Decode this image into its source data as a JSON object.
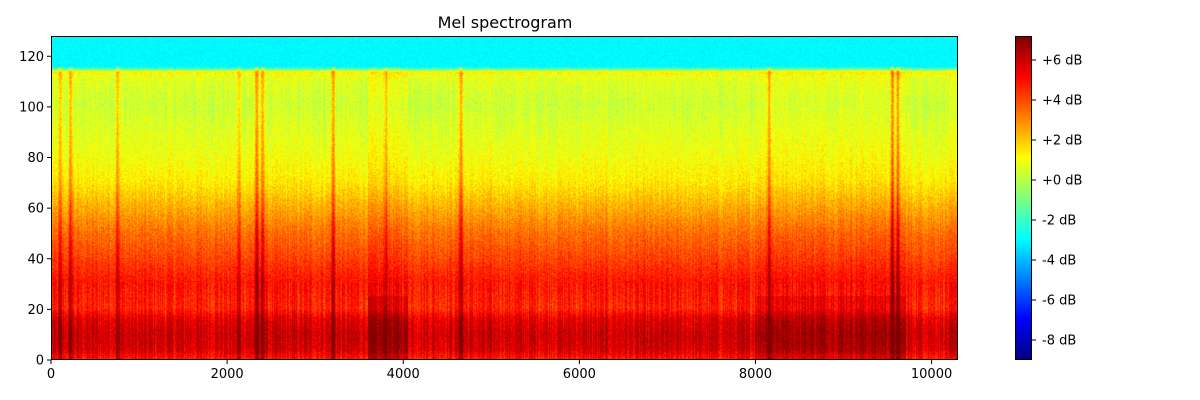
{
  "chart_data": {
    "type": "heatmap",
    "title": "Mel spectrogram",
    "xlabel": "",
    "ylabel": "",
    "xlim": [
      0,
      10300
    ],
    "ylim": [
      0,
      128
    ],
    "x_ticks": [
      0,
      2000,
      4000,
      6000,
      8000,
      10000
    ],
    "y_ticks": [
      0,
      20,
      40,
      60,
      80,
      100,
      120
    ],
    "n_time_frames": 10300,
    "n_mel_bins": 128,
    "colormap": "jet",
    "colorbar": {
      "range": [
        -9,
        7.2
      ],
      "unit": "dB",
      "ticks": [
        -8,
        -6,
        -4,
        -2,
        0,
        2,
        4,
        6
      ],
      "tick_labels": [
        "-8 dB",
        "-6 dB",
        "-4 dB",
        "-2 dB",
        "+0 dB",
        "+2 dB",
        "+4 dB",
        "+6 dB"
      ]
    },
    "band_profile_db": [
      {
        "mel_bin": 0,
        "db": 4.8
      },
      {
        "mel_bin": 4,
        "db": 5.8
      },
      {
        "mel_bin": 10,
        "db": 6.0
      },
      {
        "mel_bin": 16,
        "db": 5.6
      },
      {
        "mel_bin": 20,
        "db": 4.6
      },
      {
        "mel_bin": 30,
        "db": 4.9
      },
      {
        "mel_bin": 40,
        "db": 4.1
      },
      {
        "mel_bin": 50,
        "db": 3.4
      },
      {
        "mel_bin": 60,
        "db": 2.4
      },
      {
        "mel_bin": 70,
        "db": 1.4
      },
      {
        "mel_bin": 80,
        "db": 0.9
      },
      {
        "mel_bin": 90,
        "db": 0.6
      },
      {
        "mel_bin": 100,
        "db": 0.3
      },
      {
        "mel_bin": 110,
        "db": 0.6
      },
      {
        "mel_bin": 113,
        "db": 1.2
      },
      {
        "mel_bin": 115,
        "db": -3.0
      },
      {
        "mel_bin": 127,
        "db": -3.0
      }
    ],
    "vertical_streaks": [
      {
        "frame": 100,
        "db_boost": 1.4
      },
      {
        "frame": 220,
        "db_boost": 1.8
      },
      {
        "frame": 750,
        "db_boost": 1.8
      },
      {
        "frame": 2130,
        "db_boost": 1.2
      },
      {
        "frame": 2330,
        "db_boost": 2.4
      },
      {
        "frame": 2400,
        "db_boost": 2.2
      },
      {
        "frame": 3200,
        "db_boost": 2.2
      },
      {
        "frame": 3800,
        "db_boost": 1.5
      },
      {
        "frame": 4650,
        "db_boost": 2.4
      },
      {
        "frame": 8150,
        "db_boost": 2.0
      },
      {
        "frame": 9550,
        "db_boost": 2.2
      },
      {
        "frame": 9610,
        "db_boost": 2.0
      }
    ],
    "loud_regions": [
      {
        "from_frame": 3600,
        "to_frame": 4050,
        "db_boost": 0.9
      },
      {
        "from_frame": 8000,
        "to_frame": 9700,
        "db_boost": 0.8
      }
    ]
  }
}
